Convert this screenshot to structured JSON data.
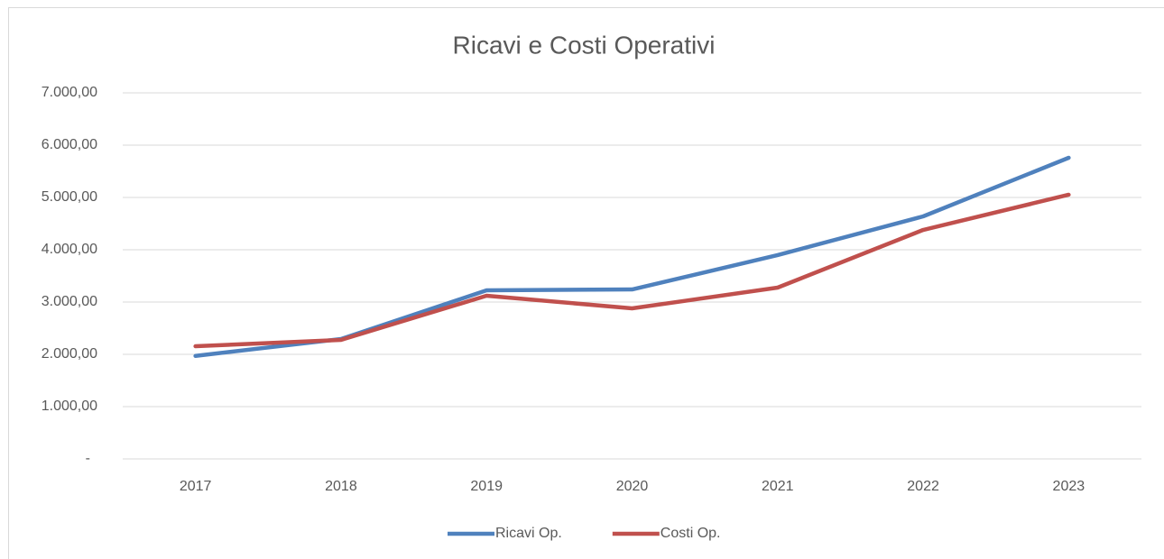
{
  "chart_data": {
    "type": "line",
    "title": "Ricavi e Costi Operativi",
    "categories": [
      "2017",
      "2018",
      "2019",
      "2020",
      "2021",
      "2022",
      "2023"
    ],
    "series": [
      {
        "name": "Ricavi Op.",
        "color": "#4f81bd",
        "values": [
          1970,
          2293,
          3224,
          3241,
          3897,
          4638,
          5759
        ]
      },
      {
        "name": "Costi Op.",
        "color": "#c0504d",
        "values": [
          2155,
          2276,
          3121,
          2879,
          3276,
          4379,
          5052
        ]
      }
    ],
    "ylim": [
      0,
      7000
    ],
    "yticks": [
      {
        "value": 0,
        "label": "-"
      },
      {
        "value": 1000,
        "label": "1.000,00"
      },
      {
        "value": 2000,
        "label": "2.000,00"
      },
      {
        "value": 3000,
        "label": "3.000,00"
      },
      {
        "value": 4000,
        "label": "4.000,00"
      },
      {
        "value": 5000,
        "label": "5.000,00"
      },
      {
        "value": 6000,
        "label": "6.000,00"
      },
      {
        "value": 7000,
        "label": "7.000,00"
      }
    ],
    "grid": true,
    "legend": "bottom"
  }
}
